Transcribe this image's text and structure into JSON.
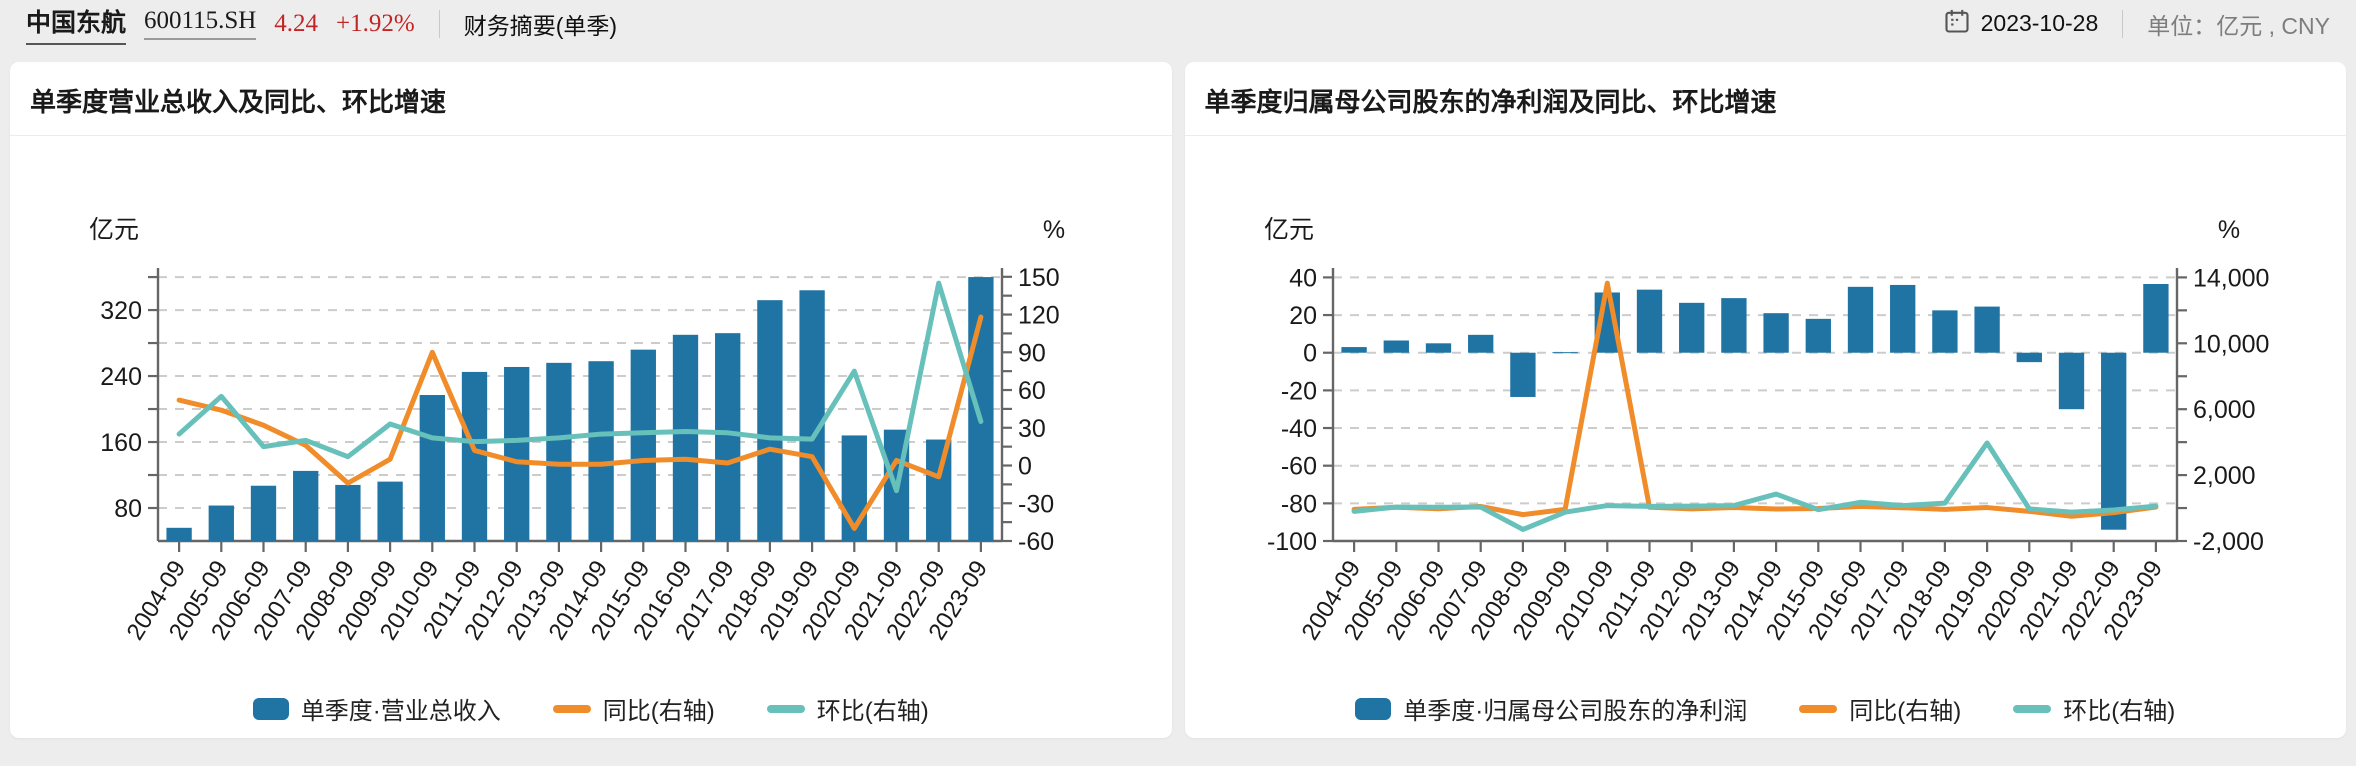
{
  "header": {
    "stock_name": "中国东航",
    "stock_code": "600115.SH",
    "price": "4.24",
    "change_percent": "+1.92%",
    "page_title": "财务摘要(单季)",
    "date": "2023-10-28",
    "unit_label": "单位：",
    "unit_value": "亿元 , CNY"
  },
  "colors": {
    "bar": "#1f74a3",
    "yoy_line": "#f08c2a",
    "qoq_line": "#68c0bb",
    "price_red": "#c22525",
    "grid": "#cccccc",
    "axis": "#666666"
  },
  "chart_data": [
    {
      "type": "bar+line",
      "title": "单季度营业总收入及同比、环比增速",
      "legend_position": "bottom",
      "grid": true,
      "categories": [
        "2004-09",
        "2005-09",
        "2006-09",
        "2007-09",
        "2008-09",
        "2009-09",
        "2010-09",
        "2011-09",
        "2012-09",
        "2013-09",
        "2014-09",
        "2015-09",
        "2016-09",
        "2017-09",
        "2018-09",
        "2019-09",
        "2020-09",
        "2021-09",
        "2022-09",
        "2023-09"
      ],
      "left_axis": {
        "unit": "亿元",
        "min": 40,
        "max": 371,
        "labels": [
          {
            "v": 320,
            "t": "320"
          },
          {
            "v": 240,
            "t": "240"
          },
          {
            "v": 160,
            "t": "160"
          },
          {
            "v": 80,
            "t": "80"
          }
        ],
        "tick_values": [
          360,
          320,
          280,
          240,
          200,
          160,
          120,
          80
        ],
        "grid_values": [
          360,
          320,
          280,
          240,
          200,
          160,
          120,
          80
        ]
      },
      "right_axis": {
        "unit": "%",
        "min": -60,
        "max": 157,
        "labels": [
          {
            "v": 150,
            "t": "150"
          },
          {
            "v": 120,
            "t": "120"
          },
          {
            "v": 90,
            "t": "90"
          },
          {
            "v": 60,
            "t": "60"
          },
          {
            "v": 30,
            "t": "30"
          },
          {
            "v": 0,
            "t": "0"
          },
          {
            "v": -30,
            "t": "-30"
          },
          {
            "v": -60,
            "t": "-60"
          }
        ],
        "tick_values": [
          150,
          135,
          120,
          105,
          90,
          75,
          60,
          45,
          30,
          15,
          0,
          -15,
          -30,
          -45,
          -60
        ]
      },
      "bar": {
        "name": "单季度·营业总收入",
        "color": "#1f74a3",
        "values": [
          56,
          83,
          107,
          125,
          108,
          112,
          217,
          245,
          251,
          256,
          258,
          272,
          290,
          292,
          332,
          344,
          168,
          175,
          163,
          360
        ]
      },
      "lines": [
        {
          "name": "同比(右轴)",
          "color": "#f08c2a",
          "axis": "right",
          "values": [
            52,
            44,
            32,
            16,
            -14,
            5,
            90,
            12,
            3,
            1,
            1,
            4,
            5,
            2,
            13,
            7,
            -50,
            4,
            -9,
            118
          ]
        },
        {
          "name": "环比(右轴)",
          "color": "#68c0bb",
          "axis": "right",
          "values": [
            25,
            55,
            15,
            20,
            7,
            33,
            22,
            19,
            20,
            22,
            25,
            26,
            27,
            26,
            22,
            21,
            75,
            -20,
            145,
            35
          ]
        }
      ]
    },
    {
      "type": "bar+line",
      "title": "单季度归属母公司股东的净利润及同比、环比增速",
      "legend_position": "bottom",
      "grid": true,
      "categories": [
        "2004-09",
        "2005-09",
        "2006-09",
        "2007-09",
        "2008-09",
        "2009-09",
        "2010-09",
        "2011-09",
        "2012-09",
        "2013-09",
        "2014-09",
        "2015-09",
        "2016-09",
        "2017-09",
        "2018-09",
        "2019-09",
        "2020-09",
        "2021-09",
        "2022-09",
        "2023-09"
      ],
      "left_axis": {
        "unit": "亿元",
        "min": -100,
        "max": 45,
        "labels": [
          {
            "v": 40,
            "t": "40"
          },
          {
            "v": 20,
            "t": "20"
          },
          {
            "v": 0,
            "t": "0"
          },
          {
            "v": -20,
            "t": "-20"
          },
          {
            "v": -40,
            "t": "-40"
          },
          {
            "v": -60,
            "t": "-60"
          },
          {
            "v": -80,
            "t": "-80"
          },
          {
            "v": -100,
            "t": "-100"
          }
        ],
        "tick_values": [
          40,
          20,
          0,
          -20,
          -40,
          -60,
          -80,
          -100
        ],
        "grid_values": [
          40,
          20,
          0,
          -20,
          -40,
          -60,
          -80
        ]
      },
      "right_axis": {
        "unit": "%",
        "min": -2000,
        "max": 14570,
        "labels": [
          {
            "v": 14000,
            "t": "14,000"
          },
          {
            "v": 10000,
            "t": "10,000"
          },
          {
            "v": 6000,
            "t": "6,000"
          },
          {
            "v": 2000,
            "t": "2,000"
          },
          {
            "v": -2000,
            "t": "-2,000"
          }
        ],
        "tick_values": [
          14000,
          12000,
          10000,
          8000,
          6000,
          4000,
          2000,
          0,
          -2000
        ]
      },
      "bar": {
        "name": "单季度·归属母公司股东的净利润",
        "color": "#1f74a3",
        "values": [
          3,
          6.5,
          5,
          9.5,
          -23.5,
          0.3,
          32,
          33.5,
          26.5,
          29,
          21,
          18,
          35,
          36,
          22.5,
          24.5,
          -5,
          -30,
          -94,
          36.5
        ]
      },
      "lines": [
        {
          "name": "同比(右轴)",
          "color": "#f08c2a",
          "axis": "right",
          "values": [
            -80,
            50,
            -40,
            100,
            -400,
            -80,
            13650,
            50,
            -50,
            30,
            -60,
            -30,
            100,
            20,
            -80,
            30,
            -200,
            -500,
            -280,
            60
          ]
        },
        {
          "name": "环比(右轴)",
          "color": "#68c0bb",
          "axis": "right",
          "values": [
            -200,
            60,
            50,
            60,
            -1300,
            -250,
            150,
            100,
            120,
            150,
            850,
            -100,
            350,
            150,
            300,
            3950,
            -50,
            -250,
            -120,
            120
          ]
        }
      ]
    }
  ]
}
